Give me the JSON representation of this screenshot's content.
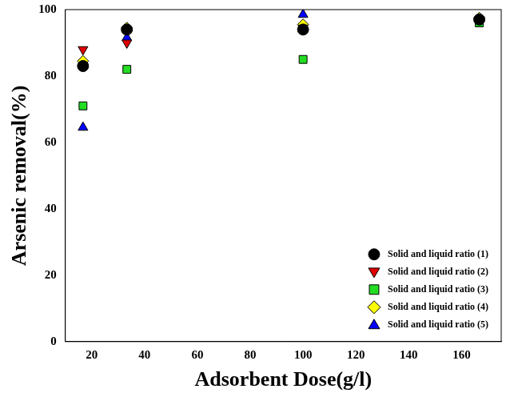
{
  "chart_data": {
    "type": "scatter",
    "x_label": "Adsorbent Dose(g/l)",
    "y_label": "Arsenic removal(%)",
    "x": [
      16.7,
      33.3,
      100,
      166.7
    ],
    "series": [
      {
        "name": "Solid and liquid ratio (1)",
        "color": "#000000",
        "marker": "circle",
        "values": [
          83,
          94,
          94,
          97
        ]
      },
      {
        "name": "Solid and liquid ratio (2)",
        "color": "#e00000",
        "marker": "triangle-down",
        "values": [
          88,
          90,
          94.5,
          97
        ]
      },
      {
        "name": "Solid and liquid ratio (3)",
        "color": "#22dd22",
        "marker": "square",
        "values": [
          71,
          82,
          85,
          96
        ]
      },
      {
        "name": "Solid and liquid ratio (4)",
        "color": "#ffff00",
        "marker": "diamond",
        "values": [
          84.5,
          94.5,
          95.5,
          97.5
        ]
      },
      {
        "name": "Solid and liquid ratio (5)",
        "color": "#0000ff",
        "marker": "triangle",
        "values": [
          64.5,
          91.5,
          98.5,
          97.5
        ]
      }
    ],
    "xlim": [
      10,
      175
    ],
    "xticks": [
      20,
      40,
      60,
      80,
      100,
      120,
      140,
      160
    ],
    "ylim": [
      0,
      100
    ],
    "yticks": [
      0,
      20,
      40,
      60,
      80,
      100
    ],
    "grid": false,
    "legend": "lower right"
  }
}
